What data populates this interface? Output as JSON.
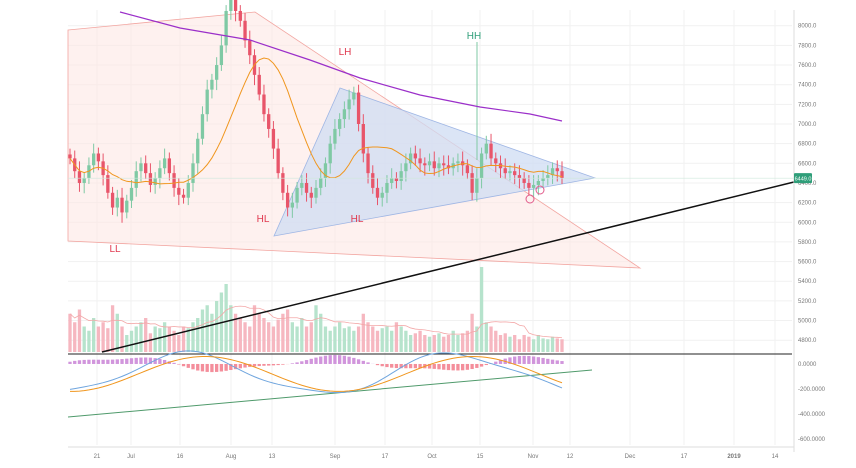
{
  "chart_data": [
    {
      "type": "candlestick",
      "title": "",
      "xlabel": "",
      "ylabel": "",
      "grid": true,
      "y_ticks": [
        4800,
        5000,
        5200,
        5400,
        5600,
        5800,
        6000,
        6200,
        6400,
        6600,
        6800,
        7000,
        7200,
        7400,
        7600,
        7800,
        8000
      ],
      "ylim": [
        4680,
        8160
      ],
      "x_ticks": [
        "21",
        "Jul",
        "16",
        "Aug",
        "13",
        "Sep",
        "17",
        "Oct",
        "15",
        "Nov",
        "12",
        "Dec",
        "17",
        "2019",
        "14"
      ],
      "last_price_label": "6449.0",
      "last_price": 6449,
      "price_closes": [
        6650,
        6520,
        6400,
        6450,
        6580,
        6700,
        6620,
        6480,
        6300,
        6150,
        6250,
        6100,
        6220,
        6350,
        6520,
        6600,
        6500,
        6380,
        6450,
        6550,
        6650,
        6500,
        6350,
        6280,
        6250,
        6400,
        6600,
        6850,
        7100,
        7350,
        7450,
        7600,
        7800,
        8150,
        8300,
        8150,
        8050,
        7850,
        7700,
        7500,
        7300,
        7100,
        6950,
        6750,
        6500,
        6300,
        6150,
        6200,
        6350,
        6400,
        6300,
        6250,
        6350,
        6450,
        6600,
        6800,
        6950,
        7050,
        7150,
        7250,
        7320,
        7000,
        6700,
        6500,
        6350,
        6250,
        6300,
        6400,
        6450,
        6420,
        6520,
        6600,
        6700,
        6650,
        6600,
        6580,
        6620,
        6550,
        6600,
        6580,
        6550,
        6600,
        6620,
        6580,
        6500,
        6300,
        6450,
        6700,
        6800,
        6650,
        6600,
        6550,
        6500,
        6520,
        6480,
        6450,
        6400,
        6350,
        6380,
        6420,
        6450,
        6480,
        6550,
        6520,
        6449
      ],
      "volume_heights": [
        0.45,
        0.35,
        0.5,
        0.3,
        0.25,
        0.4,
        0.3,
        0.35,
        0.28,
        0.55,
        0.45,
        0.3,
        0.2,
        0.25,
        0.3,
        0.35,
        0.4,
        0.22,
        0.3,
        0.28,
        0.35,
        0.3,
        0.25,
        0.2,
        0.3,
        0.28,
        0.35,
        0.4,
        0.5,
        0.55,
        0.45,
        0.6,
        0.7,
        0.8,
        0.55,
        0.45,
        0.4,
        0.35,
        0.3,
        0.55,
        0.45,
        0.4,
        0.35,
        0.3,
        0.38,
        0.45,
        0.5,
        0.35,
        0.3,
        0.4,
        0.3,
        0.35,
        0.55,
        0.45,
        0.3,
        0.25,
        0.3,
        0.35,
        0.28,
        0.3,
        0.25,
        0.3,
        0.45,
        0.35,
        0.3,
        0.25,
        0.28,
        0.3,
        0.25,
        0.35,
        0.3,
        0.25,
        0.2,
        0.22,
        0.25,
        0.2,
        0.18,
        0.2,
        0.22,
        0.18,
        0.2,
        0.25,
        0.2,
        0.22,
        0.25,
        0.45,
        0.3,
        1.0,
        0.35,
        0.3,
        0.25,
        0.2,
        0.22,
        0.18,
        0.2,
        0.15,
        0.2,
        0.18,
        0.15,
        0.2,
        0.16,
        0.15,
        0.18,
        0.16,
        0.15
      ],
      "annotations": [
        "LL",
        "HL",
        "HL",
        "LH",
        "HH"
      ]
    },
    {
      "type": "histogram",
      "y_ticks": [
        "0.0000",
        "-200.0000",
        "-400.0000",
        "-600.0000"
      ],
      "ylim": [
        -650,
        80
      ]
    }
  ],
  "colors": {
    "up": "#7fc9a4",
    "down": "#e8556a",
    "volume_up": "#b6e3cc",
    "volume_down": "#f6b7c0",
    "ma_orange": "#f0961e",
    "ma_purple": "#9b2fc9",
    "trendline_black": "#111111",
    "triangle_fill": "#cfdcf3",
    "wedge_fill": "#fde5e1",
    "label_red": "#e0394f",
    "label_green": "#2f9e79",
    "price_tag": "#2f9e79",
    "macd_hist_pos": "#c983d6",
    "macd_hist_neg": "#f27a8a",
    "macd_line": "#6fa5de",
    "signal_line": "#f0961e",
    "divergence_line": "#4f9a6b",
    "grid": "#f1f1f1",
    "axis_text": "#777777"
  }
}
